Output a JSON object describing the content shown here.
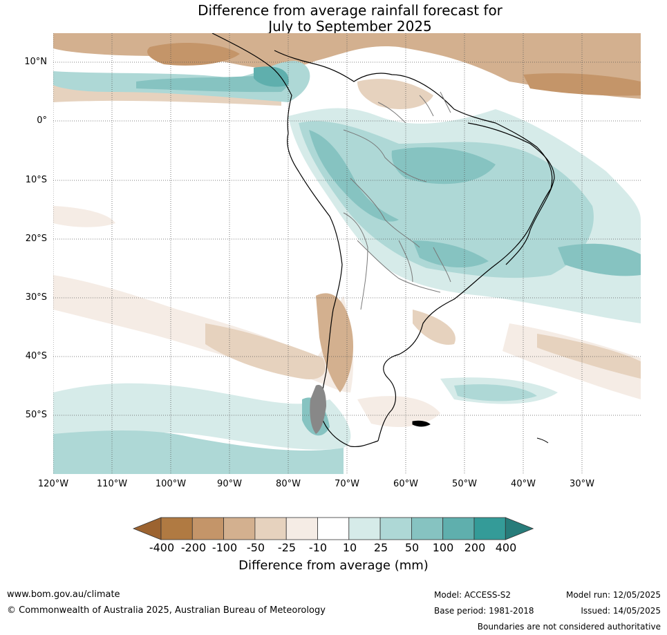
{
  "title_line1": "Difference from average rainfall forecast for",
  "title_line2": "July to September 2025",
  "map": {
    "lat_labels": [
      "10°N",
      "0°",
      "10°S",
      "20°S",
      "30°S",
      "40°S",
      "50°S"
    ],
    "lon_labels": [
      "120°W",
      "110°W",
      "100°W",
      "90°W",
      "80°W",
      "70°W",
      "60°W",
      "50°W",
      "40°W",
      "30°W"
    ]
  },
  "legend": {
    "title": "Difference from average (mm)",
    "tick_labels": [
      "-400",
      "-200",
      "-100",
      "-50",
      "-25",
      "-10",
      "10",
      "25",
      "50",
      "100",
      "200",
      "400"
    ],
    "colors": [
      "#9c6330",
      "#b07a42",
      "#c49569",
      "#d3b08f",
      "#e6d2be",
      "#f5ece5",
      "#ffffff",
      "#d6ebe9",
      "#aed8d6",
      "#86c3c1",
      "#5fafad",
      "#349b98",
      "#277c7a"
    ]
  },
  "footer": {
    "website": "www.bom.gov.au/climate",
    "copyright": "© Commonwealth of Australia 2025, Australian Bureau of Meteorology",
    "model": "Model: ACCESS-S2",
    "base_period": "Base period: 1981-2018",
    "model_run": "Model run: 12/05/2025",
    "issued": "Issued: 14/05/2025",
    "boundaries_note": "Boundaries are not considered authoritative"
  }
}
